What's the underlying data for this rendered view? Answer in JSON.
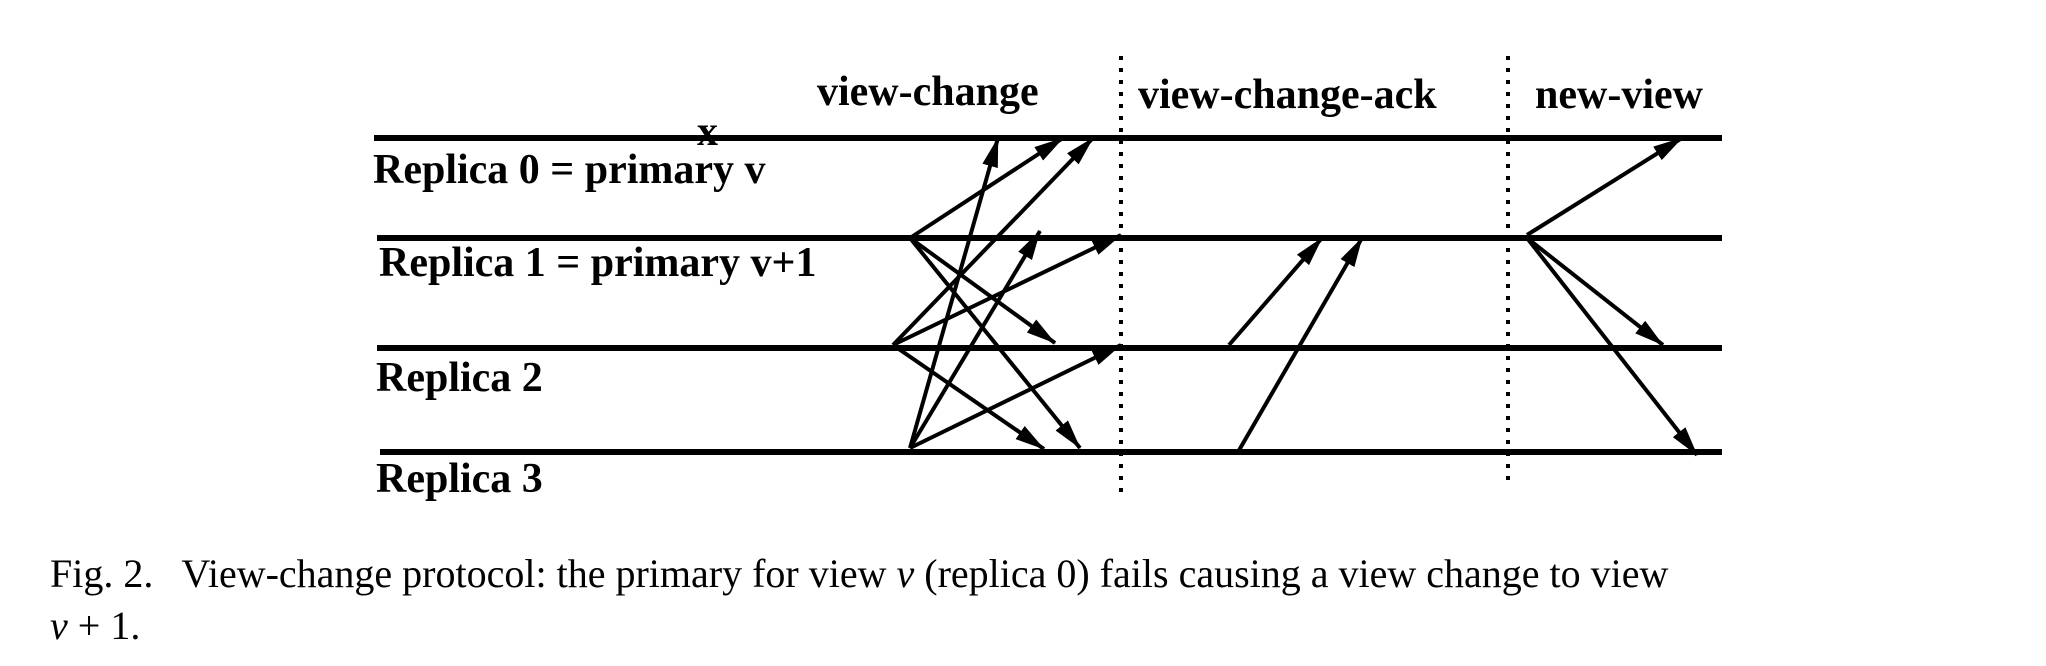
{
  "phases": [
    {
      "label": "view-change"
    },
    {
      "label": "view-change-ack"
    },
    {
      "label": "new-view"
    }
  ],
  "replicas": [
    {
      "label": "Replica 0 = primary v"
    },
    {
      "label": "Replica 1 = primary v+1"
    },
    {
      "label": "Replica 2"
    },
    {
      "label": "Replica 3"
    }
  ],
  "failure_mark": "x",
  "caption": {
    "figure_number": "Fig. 2.",
    "text_before": "View-change protocol: the primary for view ",
    "var_v": "v",
    "text_middle": " (replica 0) fails causing a view change to view",
    "var_v_plus": "v",
    "text_end": " + 1."
  }
}
